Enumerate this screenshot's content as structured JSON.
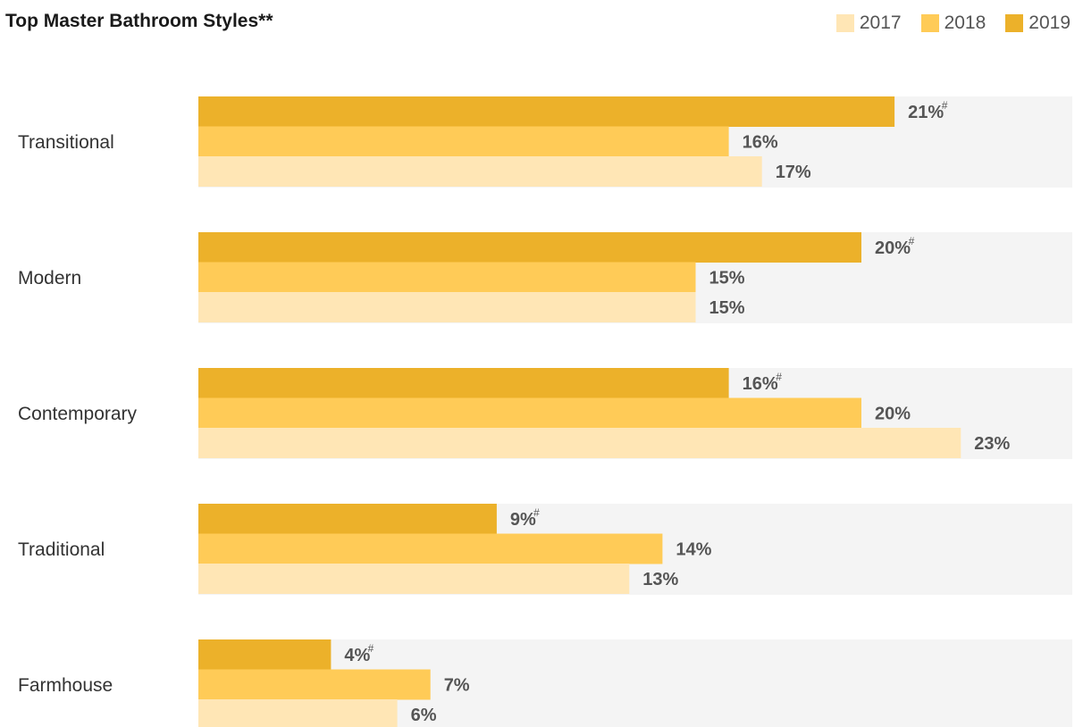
{
  "chart_data": {
    "type": "bar",
    "orientation": "horizontal",
    "title": "Top Master Bathroom Styles**",
    "categories": [
      "Transitional",
      "Modern",
      "Contemporary",
      "Traditional",
      "Farmhouse"
    ],
    "series": [
      {
        "name": "2019",
        "color": "#ECB12A",
        "values": [
          21,
          20,
          16,
          9,
          4
        ],
        "labels": [
          "21%",
          "20%",
          "16%",
          "9%",
          "4%"
        ],
        "markers": [
          "#",
          "#",
          "#",
          "#",
          "#"
        ]
      },
      {
        "name": "2018",
        "color": "#FFCB57",
        "values": [
          16,
          15,
          20,
          14,
          7
        ],
        "labels": [
          "16%",
          "15%",
          "20%",
          "14%",
          "7%"
        ]
      },
      {
        "name": "2017",
        "color": "#FFE6B5",
        "values": [
          17,
          15,
          23,
          13,
          6
        ],
        "labels": [
          "17%",
          "15%",
          "23%",
          "13%",
          "6%"
        ]
      }
    ],
    "legend": {
      "position": "top-right",
      "items": [
        {
          "label": "2017",
          "color": "#FFE6B5"
        },
        {
          "label": "2018",
          "color": "#FFCB57"
        },
        {
          "label": "2019",
          "color": "#ECB12A"
        }
      ]
    },
    "xlim": [
      0,
      27
    ],
    "track_color": "#F4F4F4",
    "grid": false
  }
}
